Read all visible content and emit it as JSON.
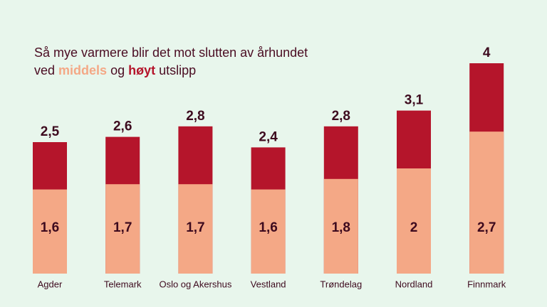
{
  "chart_data": {
    "type": "bar",
    "title": "Så mye varmere blir det mot slutten av århundet",
    "subtitle_words": [
      "ved",
      "og",
      "utslipp"
    ],
    "categories": [
      "Agder",
      "Telemark",
      "Oslo og Akershus",
      "Vestland",
      "Trøndelag",
      "Nordland",
      "Finnmark"
    ],
    "series": [
      {
        "name": "middels",
        "color": "#f4a886",
        "values": [
          1.6,
          1.7,
          1.7,
          1.6,
          1.8,
          2,
          2.7
        ],
        "value_labels": [
          "1,6",
          "1,7",
          "1,7",
          "1,6",
          "1,8",
          "2",
          "2,7"
        ]
      },
      {
        "name": "høyt",
        "color": "#b5152b",
        "values": [
          2.5,
          2.6,
          2.8,
          2.4,
          2.8,
          3.1,
          4
        ],
        "value_labels": [
          "2,5",
          "2,6",
          "2,8",
          "2,4",
          "2,8",
          "3,1",
          "4"
        ]
      }
    ]
  }
}
